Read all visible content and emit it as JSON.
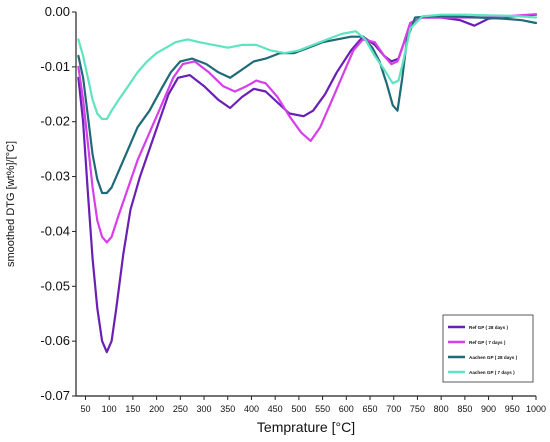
{
  "chart_data": {
    "type": "line",
    "xlabel": "Temprature [°C]",
    "ylabel": "smoothed DTG [wt%]/[°C]",
    "xlim": [
      30,
      1000
    ],
    "ylim": [
      -0.07,
      0.0
    ],
    "x_ticks": [
      "50",
      "100",
      "150",
      "200",
      "250",
      "300",
      "350",
      "400",
      "450",
      "500",
      "550",
      "600",
      "650",
      "700",
      "750",
      "800",
      "850",
      "900",
      "950",
      "1000"
    ],
    "y_ticks": [
      "0.00",
      "-0.01",
      "-0.02",
      "-0.03",
      "-0.04",
      "-0.05",
      "-0.06",
      "-0.07"
    ],
    "grid": false,
    "legend_position": "bottom-right",
    "series": [
      {
        "name": "Ref GP ( 28 days )",
        "color": "#6a1fb5",
        "points": [
          [
            35,
            -0.012
          ],
          [
            45,
            -0.02
          ],
          [
            55,
            -0.033
          ],
          [
            65,
            -0.045
          ],
          [
            75,
            -0.054
          ],
          [
            85,
            -0.06
          ],
          [
            95,
            -0.062
          ],
          [
            105,
            -0.06
          ],
          [
            115,
            -0.054
          ],
          [
            130,
            -0.044
          ],
          [
            145,
            -0.036
          ],
          [
            165,
            -0.03
          ],
          [
            185,
            -0.025
          ],
          [
            205,
            -0.02
          ],
          [
            225,
            -0.015
          ],
          [
            245,
            -0.012
          ],
          [
            270,
            -0.0115
          ],
          [
            300,
            -0.0135
          ],
          [
            330,
            -0.016
          ],
          [
            355,
            -0.0175
          ],
          [
            380,
            -0.0155
          ],
          [
            405,
            -0.014
          ],
          [
            430,
            -0.0145
          ],
          [
            455,
            -0.0165
          ],
          [
            480,
            -0.0185
          ],
          [
            510,
            -0.019
          ],
          [
            530,
            -0.018
          ],
          [
            555,
            -0.015
          ],
          [
            580,
            -0.011
          ],
          [
            610,
            -0.007
          ],
          [
            635,
            -0.0045
          ],
          [
            660,
            -0.006
          ],
          [
            680,
            -0.008
          ],
          [
            695,
            -0.009
          ],
          [
            710,
            -0.0085
          ],
          [
            720,
            -0.006
          ],
          [
            735,
            -0.002
          ],
          [
            760,
            -0.001
          ],
          [
            800,
            -0.001
          ],
          [
            840,
            -0.0015
          ],
          [
            870,
            -0.0025
          ],
          [
            900,
            -0.0012
          ],
          [
            950,
            -0.0008
          ],
          [
            1000,
            -0.0005
          ]
        ]
      },
      {
        "name": "Ref GP ( 7 days )",
        "color": "#d63fea",
        "points": [
          [
            35,
            -0.01
          ],
          [
            45,
            -0.016
          ],
          [
            55,
            -0.024
          ],
          [
            65,
            -0.032
          ],
          [
            75,
            -0.038
          ],
          [
            85,
            -0.041
          ],
          [
            95,
            -0.042
          ],
          [
            105,
            -0.041
          ],
          [
            120,
            -0.037
          ],
          [
            140,
            -0.032
          ],
          [
            160,
            -0.027
          ],
          [
            185,
            -0.022
          ],
          [
            210,
            -0.017
          ],
          [
            235,
            -0.012
          ],
          [
            255,
            -0.0095
          ],
          [
            280,
            -0.009
          ],
          [
            310,
            -0.011
          ],
          [
            340,
            -0.0135
          ],
          [
            365,
            -0.0145
          ],
          [
            390,
            -0.0135
          ],
          [
            410,
            -0.0125
          ],
          [
            430,
            -0.013
          ],
          [
            455,
            -0.0155
          ],
          [
            480,
            -0.019
          ],
          [
            505,
            -0.022
          ],
          [
            525,
            -0.0235
          ],
          [
            545,
            -0.021
          ],
          [
            570,
            -0.016
          ],
          [
            595,
            -0.011
          ],
          [
            615,
            -0.007
          ],
          [
            635,
            -0.005
          ],
          [
            660,
            -0.0055
          ],
          [
            680,
            -0.008
          ],
          [
            695,
            -0.0095
          ],
          [
            708,
            -0.009
          ],
          [
            720,
            -0.006
          ],
          [
            735,
            -0.002
          ],
          [
            760,
            -0.001
          ],
          [
            800,
            -0.001
          ],
          [
            850,
            -0.001
          ],
          [
            900,
            -0.001
          ],
          [
            950,
            -0.0007
          ],
          [
            1000,
            -0.0004
          ]
        ]
      },
      {
        "name": "Aachen GP ( 28 days )",
        "color": "#1f6a78",
        "points": [
          [
            35,
            -0.008
          ],
          [
            45,
            -0.012
          ],
          [
            55,
            -0.019
          ],
          [
            65,
            -0.026
          ],
          [
            75,
            -0.0305
          ],
          [
            85,
            -0.033
          ],
          [
            95,
            -0.033
          ],
          [
            105,
            -0.032
          ],
          [
            120,
            -0.029
          ],
          [
            140,
            -0.025
          ],
          [
            160,
            -0.021
          ],
          [
            185,
            -0.018
          ],
          [
            210,
            -0.014
          ],
          [
            230,
            -0.011
          ],
          [
            250,
            -0.009
          ],
          [
            275,
            -0.0085
          ],
          [
            305,
            -0.0095
          ],
          [
            330,
            -0.011
          ],
          [
            355,
            -0.012
          ],
          [
            380,
            -0.0105
          ],
          [
            405,
            -0.009
          ],
          [
            430,
            -0.0085
          ],
          [
            460,
            -0.0075
          ],
          [
            490,
            -0.0075
          ],
          [
            520,
            -0.0065
          ],
          [
            550,
            -0.0055
          ],
          [
            580,
            -0.005
          ],
          [
            610,
            -0.0045
          ],
          [
            635,
            -0.0045
          ],
          [
            655,
            -0.0065
          ],
          [
            670,
            -0.009
          ],
          [
            685,
            -0.013
          ],
          [
            698,
            -0.017
          ],
          [
            708,
            -0.018
          ],
          [
            718,
            -0.012
          ],
          [
            728,
            -0.005
          ],
          [
            745,
            -0.001
          ],
          [
            780,
            -0.0008
          ],
          [
            830,
            -0.0008
          ],
          [
            880,
            -0.001
          ],
          [
            930,
            -0.0012
          ],
          [
            970,
            -0.0015
          ],
          [
            1000,
            -0.002
          ]
        ]
      },
      {
        "name": "Aachen GP ( 7 days )",
        "color": "#5fe3c0",
        "points": [
          [
            35,
            -0.005
          ],
          [
            45,
            -0.008
          ],
          [
            55,
            -0.012
          ],
          [
            65,
            -0.016
          ],
          [
            75,
            -0.0185
          ],
          [
            85,
            -0.0195
          ],
          [
            95,
            -0.0195
          ],
          [
            105,
            -0.018
          ],
          [
            120,
            -0.016
          ],
          [
            140,
            -0.0135
          ],
          [
            160,
            -0.011
          ],
          [
            180,
            -0.009
          ],
          [
            200,
            -0.0075
          ],
          [
            220,
            -0.0065
          ],
          [
            240,
            -0.0055
          ],
          [
            265,
            -0.005
          ],
          [
            290,
            -0.0055
          ],
          [
            320,
            -0.006
          ],
          [
            350,
            -0.0065
          ],
          [
            380,
            -0.006
          ],
          [
            410,
            -0.006
          ],
          [
            440,
            -0.007
          ],
          [
            470,
            -0.0075
          ],
          [
            500,
            -0.007
          ],
          [
            530,
            -0.006
          ],
          [
            560,
            -0.005
          ],
          [
            590,
            -0.004
          ],
          [
            620,
            -0.0035
          ],
          [
            640,
            -0.005
          ],
          [
            660,
            -0.008
          ],
          [
            680,
            -0.0105
          ],
          [
            698,
            -0.013
          ],
          [
            710,
            -0.0125
          ],
          [
            720,
            -0.009
          ],
          [
            735,
            -0.003
          ],
          [
            760,
            -0.0008
          ],
          [
            800,
            -0.0005
          ],
          [
            850,
            -0.0005
          ],
          [
            900,
            -0.0006
          ],
          [
            950,
            -0.0007
          ],
          [
            1000,
            -0.001
          ]
        ]
      }
    ]
  }
}
